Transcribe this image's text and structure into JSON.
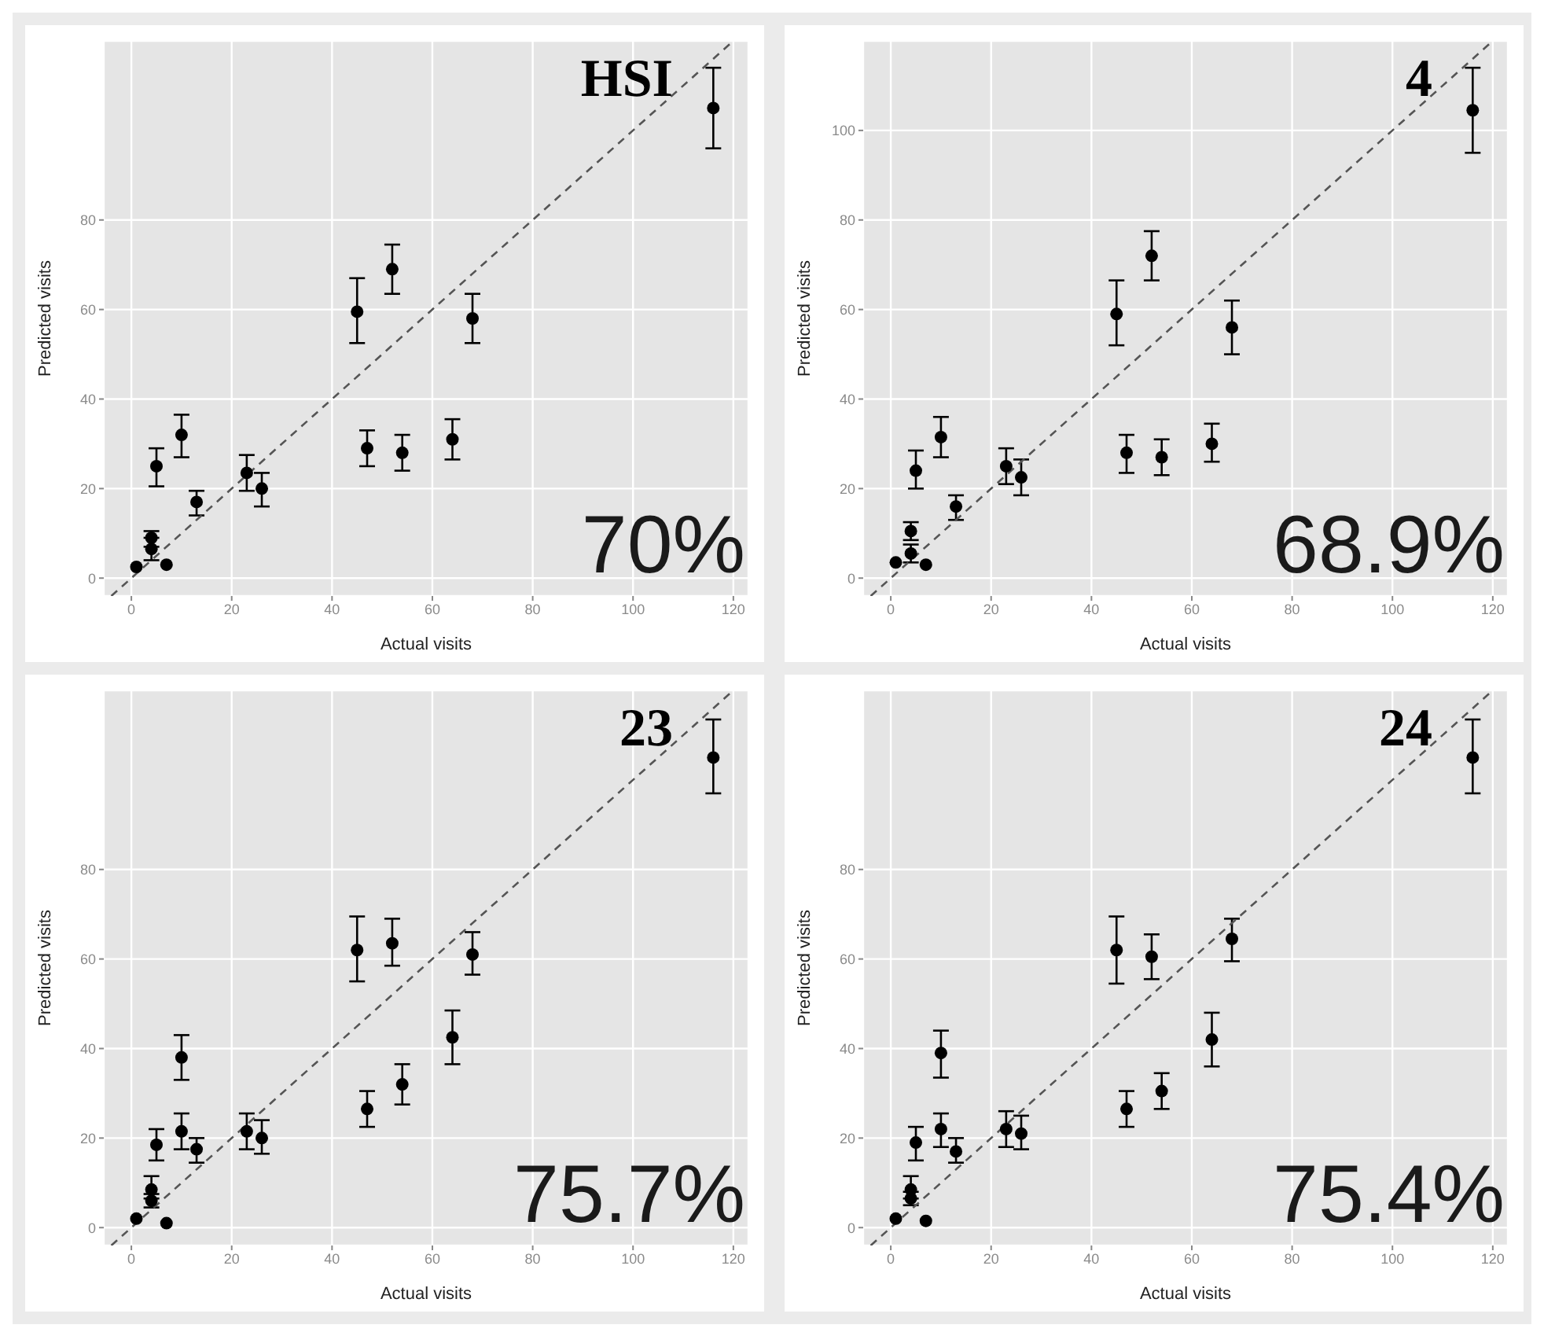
{
  "chart_data": [
    {
      "type": "scatter",
      "xlabel": "Actual visits",
      "ylabel": "Predicted visits",
      "annotations": [
        "HSI",
        "70%"
      ],
      "xlim": [
        -5.5,
        123
      ],
      "ylim": [
        -4,
        120
      ],
      "xticks": [
        0,
        20,
        40,
        60,
        80,
        100,
        120
      ],
      "yticks": [
        0,
        20,
        40,
        60,
        80
      ],
      "grid": true,
      "marker": "circle",
      "series": [
        {
          "type": "scatter",
          "color": "#000000",
          "x": [
            1,
            4,
            4,
            5,
            7,
            10,
            13,
            23,
            26,
            45,
            47,
            52,
            54,
            64,
            68,
            116
          ],
          "values": [
            2.5,
            9,
            6.5,
            25,
            3,
            32,
            17,
            23.5,
            20,
            59.5,
            29,
            69,
            28,
            31,
            58,
            105
          ],
          "errors": [
            null,
            [
              7,
              10.5
            ],
            [
              4,
              9
            ],
            [
              20.5,
              29
            ],
            null,
            [
              27,
              36.5
            ],
            [
              14,
              19.5
            ],
            [
              19.5,
              27.5
            ],
            [
              16,
              23.5
            ],
            [
              52.5,
              67
            ],
            [
              25,
              33
            ],
            [
              63.5,
              74.5
            ],
            [
              24,
              32
            ],
            [
              26.5,
              35.5
            ],
            [
              52.5,
              63.5
            ],
            [
              96,
              114
            ]
          ]
        },
        {
          "type": "line",
          "color": "#555555",
          "x": [
            -4,
            120
          ],
          "values": [
            -4,
            120
          ],
          "line_style": "dashed",
          "marker": "none"
        }
      ]
    },
    {
      "type": "scatter",
      "xlabel": "Actual visits",
      "ylabel": "Predicted visits",
      "annotations": [
        "4",
        "68.9%"
      ],
      "xlim": [
        -5.5,
        123
      ],
      "ylim": [
        -4,
        120
      ],
      "xticks": [
        0,
        20,
        40,
        60,
        80,
        100,
        120
      ],
      "yticks": [
        0,
        20,
        40,
        60,
        80,
        100
      ],
      "grid": true,
      "marker": "circle",
      "series": [
        {
          "type": "scatter",
          "color": "#000000",
          "x": [
            1,
            4,
            4,
            5,
            7,
            10,
            13,
            23,
            26,
            45,
            47,
            52,
            54,
            64,
            68,
            116
          ],
          "values": [
            3.5,
            10.5,
            5.5,
            24,
            3,
            31.5,
            16,
            25,
            22.5,
            59,
            28,
            72,
            27,
            30,
            56,
            104.5
          ],
          "errors": [
            null,
            [
              8.5,
              12.5
            ],
            [
              3.5,
              7.5
            ],
            [
              20,
              28.5
            ],
            null,
            [
              27,
              36
            ],
            [
              13,
              18.5
            ],
            [
              21,
              29
            ],
            [
              18.5,
              26.5
            ],
            [
              52,
              66.5
            ],
            [
              23.5,
              32
            ],
            [
              66.5,
              77.5
            ],
            [
              23,
              31
            ],
            [
              26,
              34.5
            ],
            [
              50,
              62
            ],
            [
              95,
              114
            ]
          ]
        },
        {
          "type": "line",
          "color": "#555555",
          "x": [
            -4,
            120
          ],
          "values": [
            -4,
            120
          ],
          "line_style": "dashed",
          "marker": "none"
        }
      ]
    },
    {
      "type": "scatter",
      "xlabel": "Actual visits",
      "ylabel": "Predicted visits",
      "annotations": [
        "23",
        "75.7%"
      ],
      "xlim": [
        -5.5,
        123
      ],
      "ylim": [
        -4,
        120
      ],
      "xticks": [
        0,
        20,
        40,
        60,
        80,
        100,
        120
      ],
      "yticks": [
        0,
        20,
        40,
        60,
        80
      ],
      "grid": true,
      "marker": "circle",
      "series": [
        {
          "type": "scatter",
          "color": "#000000",
          "x": [
            1,
            4,
            4,
            5,
            7,
            10,
            10,
            13,
            23,
            26,
            45,
            47,
            52,
            54,
            64,
            68,
            116
          ],
          "values": [
            2,
            8.5,
            6,
            18.5,
            1,
            38,
            21.5,
            17.5,
            21.5,
            20,
            62,
            26.5,
            63.5,
            32,
            42.5,
            61,
            105
          ],
          "errors": [
            null,
            [
              6.5,
              11.5
            ],
            [
              4.5,
              7.5
            ],
            [
              15,
              22
            ],
            null,
            [
              33,
              43
            ],
            [
              17.5,
              25.5
            ],
            [
              14.5,
              20
            ],
            [
              17.5,
              25.5
            ],
            [
              16.5,
              24
            ],
            [
              55,
              69.5
            ],
            [
              22.5,
              30.5
            ],
            [
              58.5,
              69
            ],
            [
              27.5,
              36.5
            ],
            [
              36.5,
              48.5
            ],
            [
              56.5,
              66
            ],
            [
              97,
              113.5
            ]
          ]
        },
        {
          "type": "line",
          "color": "#555555",
          "x": [
            -4,
            120
          ],
          "values": [
            -4,
            120
          ],
          "line_style": "dashed",
          "marker": "none"
        }
      ]
    },
    {
      "type": "scatter",
      "xlabel": "Actual visits",
      "ylabel": "Predicted visits",
      "annotations": [
        "24",
        "75.4%"
      ],
      "xlim": [
        -5.5,
        123
      ],
      "ylim": [
        -4,
        120
      ],
      "xticks": [
        0,
        20,
        40,
        60,
        80,
        100,
        120
      ],
      "yticks": [
        0,
        20,
        40,
        60,
        80
      ],
      "grid": true,
      "marker": "circle",
      "series": [
        {
          "type": "scatter",
          "color": "#000000",
          "x": [
            1,
            4,
            4,
            5,
            7,
            10,
            10,
            13,
            23,
            26,
            45,
            47,
            52,
            54,
            64,
            68,
            116
          ],
          "values": [
            2,
            8.5,
            6.5,
            19,
            1.5,
            39,
            22,
            17,
            22,
            21,
            62,
            26.5,
            60.5,
            30.5,
            42,
            64.5,
            105
          ],
          "errors": [
            null,
            [
              6.5,
              11.5
            ],
            [
              5,
              8
            ],
            [
              15,
              22.5
            ],
            null,
            [
              33.5,
              44
            ],
            [
              18,
              25.5
            ],
            [
              14.5,
              20
            ],
            [
              18,
              26
            ],
            [
              17.5,
              25
            ],
            [
              54.5,
              69.5
            ],
            [
              22.5,
              30.5
            ],
            [
              55.5,
              65.5
            ],
            [
              26.5,
              34.5
            ],
            [
              36,
              48
            ],
            [
              59.5,
              69
            ],
            [
              97,
              113.5
            ]
          ]
        },
        {
          "type": "line",
          "color": "#555555",
          "x": [
            -4,
            120
          ],
          "values": [
            -4,
            120
          ],
          "line_style": "dashed",
          "marker": "none"
        }
      ]
    }
  ]
}
